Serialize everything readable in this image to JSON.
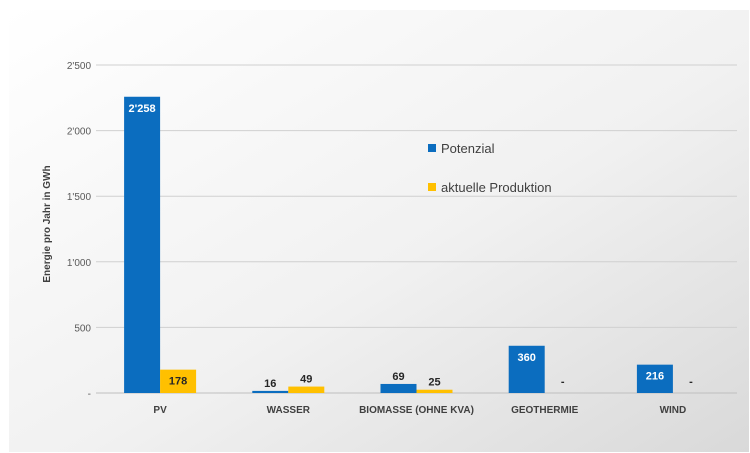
{
  "chart_data": {
    "type": "bar",
    "categories": [
      "PV",
      "WASSER",
      "BIOMASSE (OHNE KVA)",
      "GEOTHERMIE",
      "WIND"
    ],
    "series": [
      {
        "name": "Potenzial",
        "values": [
          2258,
          16,
          69,
          360,
          216
        ],
        "labels": [
          "2'258",
          "16",
          "69",
          "360",
          "216"
        ],
        "color": "#0b6dbf"
      },
      {
        "name": "aktuelle Produktion",
        "values": [
          178,
          49,
          25,
          0,
          0
        ],
        "labels": [
          "178",
          "49",
          "25",
          "-",
          "-"
        ],
        "color": "#ffc000"
      }
    ],
    "ylabel": "Energie pro Jahr in GWh",
    "ylim": [
      0,
      2500
    ],
    "yticks": [
      0,
      500,
      1000,
      1500,
      2000,
      2500
    ],
    "ytick_labels": [
      "-",
      "500",
      "1'000",
      "1'500",
      "2'000",
      "2'500"
    ],
    "grid": true,
    "legend_position": "center-right"
  }
}
